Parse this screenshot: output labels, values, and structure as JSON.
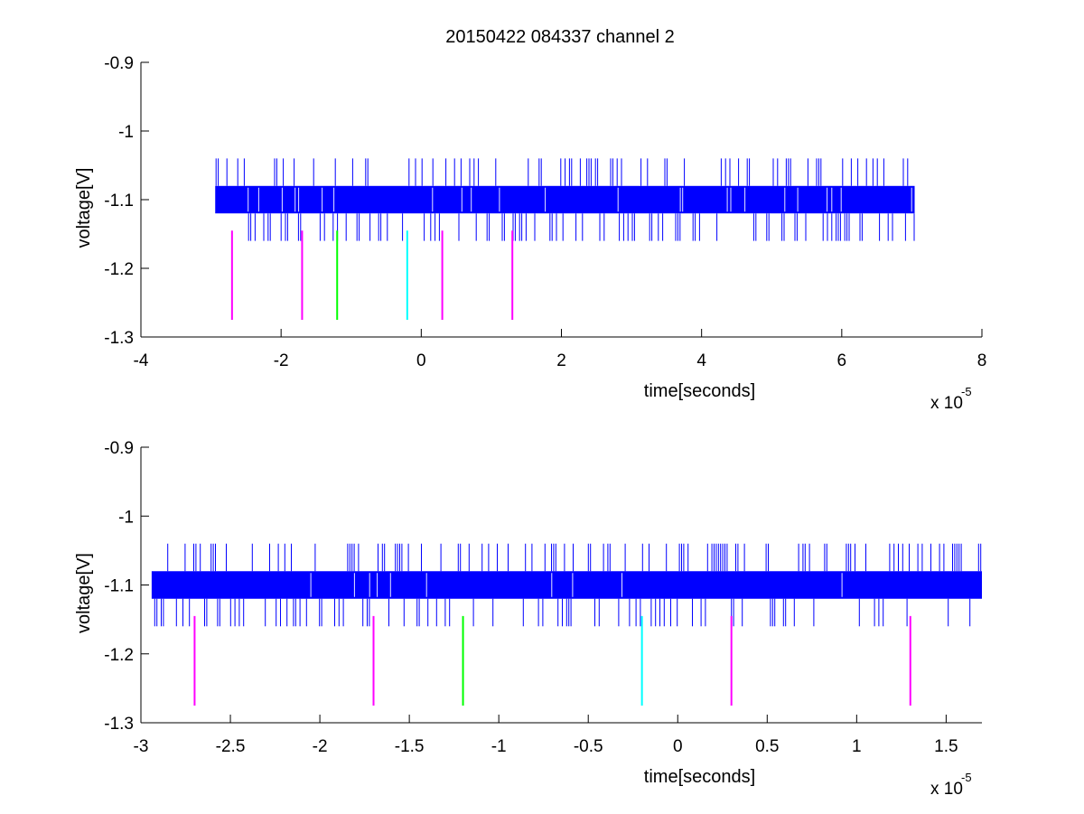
{
  "title": "20150422 084337 channel 2",
  "colors": {
    "signal": "#0000ff",
    "magenta": "#ff00ff",
    "green": "#00ff00",
    "cyan": "#00ffff",
    "axis": "#000000"
  },
  "chart_data": [
    {
      "type": "line",
      "title": "20150422 084337 channel 2",
      "xlabel": "time[seconds]",
      "ylabel": "voltage[V]",
      "x_exponent_label": "x 10",
      "x_exponent": "-5",
      "xlim": [
        -4e-05,
        8e-05
      ],
      "ylim": [
        -1.3,
        -0.9
      ],
      "x_ticks": [
        -4e-05,
        -2e-05,
        0,
        2e-05,
        4e-05,
        6e-05,
        8e-05
      ],
      "x_tick_labels": [
        "-4",
        "-2",
        "0",
        "2",
        "4",
        "6",
        "8"
      ],
      "y_ticks": [
        -0.9,
        -1.0,
        -1.1,
        -1.2,
        -1.3
      ],
      "y_tick_labels": [
        "-0.9",
        "-1",
        "-1.1",
        "-1.2",
        "-1.3"
      ],
      "grid": false,
      "signal": {
        "name": "",
        "x_range": [
          -2.94e-05,
          7.04e-05
        ],
        "band": [
          -1.12,
          -1.08
        ],
        "level_min": -1.16,
        "level_max": -1.04
      },
      "markers": [
        {
          "x": -2.7e-05,
          "y": [
            -1.145,
            -1.275
          ],
          "color": "magenta"
        },
        {
          "x": -1.7e-05,
          "y": [
            -1.145,
            -1.275
          ],
          "color": "magenta"
        },
        {
          "x": -1.2e-05,
          "y": [
            -1.145,
            -1.275
          ],
          "color": "green"
        },
        {
          "x": -2e-06,
          "y": [
            -1.145,
            -1.275
          ],
          "color": "cyan"
        },
        {
          "x": 3e-06,
          "y": [
            -1.145,
            -1.275
          ],
          "color": "magenta"
        },
        {
          "x": 1.3e-05,
          "y": [
            -1.145,
            -1.275
          ],
          "color": "magenta"
        }
      ]
    },
    {
      "type": "line",
      "title": "",
      "xlabel": "time[seconds]",
      "ylabel": "voltage[V]",
      "x_exponent_label": "x 10",
      "x_exponent": "-5",
      "xlim": [
        -3e-05,
        1.7e-05
      ],
      "ylim": [
        -1.3,
        -0.9
      ],
      "x_ticks": [
        -3e-05,
        -2.5e-05,
        -2e-05,
        -1.5e-05,
        -1e-05,
        -5e-06,
        0,
        5e-06,
        1e-05,
        1.5e-05
      ],
      "x_tick_labels": [
        "-3",
        "-2.5",
        "-2",
        "-1.5",
        "-1",
        "-0.5",
        "0",
        "0.5",
        "1",
        "1.5"
      ],
      "y_ticks": [
        -0.9,
        -1.0,
        -1.1,
        -1.2,
        -1.3
      ],
      "y_tick_labels": [
        "-0.9",
        "-1",
        "-1.1",
        "-1.2",
        "-1.3"
      ],
      "grid": false,
      "signal": {
        "name": "",
        "x_range": [
          -2.94e-05,
          1.7e-05
        ],
        "band": [
          -1.12,
          -1.08
        ],
        "level_min": -1.16,
        "level_max": -1.04
      },
      "markers": [
        {
          "x": -2.7e-05,
          "y": [
            -1.145,
            -1.275
          ],
          "color": "magenta"
        },
        {
          "x": -1.7e-05,
          "y": [
            -1.145,
            -1.275
          ],
          "color": "magenta"
        },
        {
          "x": -1.2e-05,
          "y": [
            -1.145,
            -1.275
          ],
          "color": "green"
        },
        {
          "x": -2e-06,
          "y": [
            -1.145,
            -1.275
          ],
          "color": "cyan"
        },
        {
          "x": 3e-06,
          "y": [
            -1.145,
            -1.275
          ],
          "color": "magenta"
        },
        {
          "x": 1.3e-05,
          "y": [
            -1.145,
            -1.275
          ],
          "color": "magenta"
        }
      ]
    }
  ]
}
